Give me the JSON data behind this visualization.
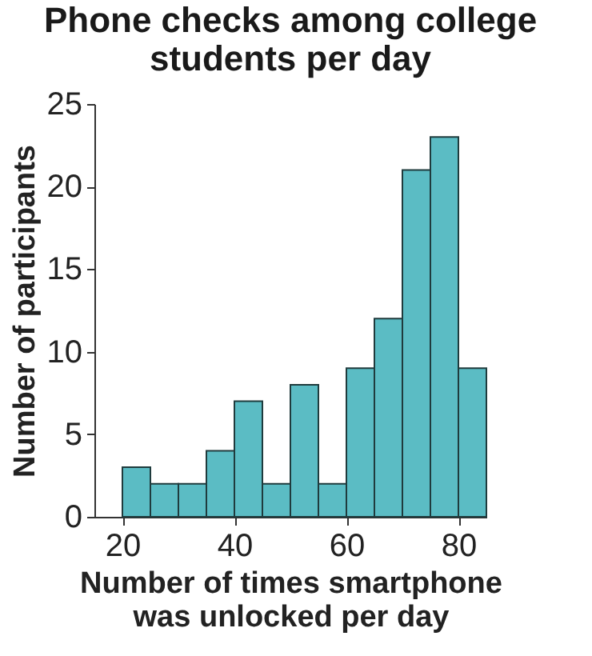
{
  "chart_data": {
    "type": "histogram",
    "title": "Phone checks among college students per day",
    "xlabel": "Number of times smartphone was unlocked per day",
    "ylabel": "Number of participants",
    "bins": [
      20,
      25,
      30,
      35,
      40,
      45,
      50,
      55,
      60,
      65,
      70,
      75,
      80,
      85
    ],
    "values": [
      3,
      2,
      2,
      4,
      7,
      2,
      8,
      2,
      9,
      12,
      21,
      23,
      9
    ],
    "color": "#5bbcc4",
    "xlim": [
      15,
      85
    ],
    "xticks": [
      20,
      40,
      60,
      80
    ],
    "ylim": [
      0,
      25
    ],
    "yticks": [
      0,
      5,
      10,
      15,
      20,
      25
    ],
    "grid": false
  }
}
